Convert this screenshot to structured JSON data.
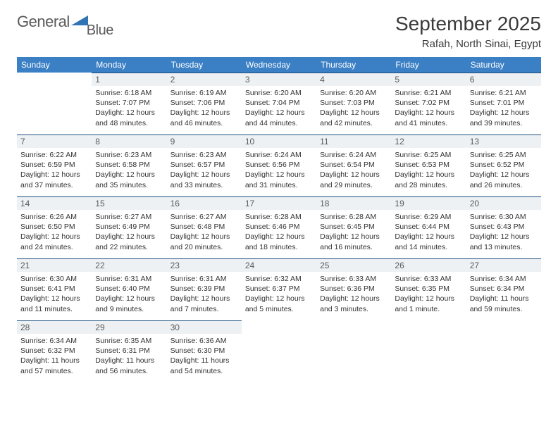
{
  "logo": {
    "text1": "General",
    "text2": "Blue"
  },
  "title": "September 2025",
  "location": "Rafah, North Sinai, Egypt",
  "colors": {
    "header_bg": "#3b7fc4",
    "header_text": "#ffffff",
    "daynum_bg": "#eef1f4",
    "daynum_border": "#1b4e7e",
    "text": "#333333",
    "title_text": "#3a3a3a",
    "logo_text": "#5a5a5a",
    "logo_accent": "#2f74b5"
  },
  "fonts": {
    "title_size": 28,
    "location_size": 15,
    "header_size": 12,
    "daynum_size": 12,
    "body_size": 10.5
  },
  "weekdays": [
    "Sunday",
    "Monday",
    "Tuesday",
    "Wednesday",
    "Thursday",
    "Friday",
    "Saturday"
  ],
  "weeks": [
    [
      null,
      {
        "n": "1",
        "sr": "6:18 AM",
        "ss": "7:07 PM",
        "dl": "12 hours and 48 minutes."
      },
      {
        "n": "2",
        "sr": "6:19 AM",
        "ss": "7:06 PM",
        "dl": "12 hours and 46 minutes."
      },
      {
        "n": "3",
        "sr": "6:20 AM",
        "ss": "7:04 PM",
        "dl": "12 hours and 44 minutes."
      },
      {
        "n": "4",
        "sr": "6:20 AM",
        "ss": "7:03 PM",
        "dl": "12 hours and 42 minutes."
      },
      {
        "n": "5",
        "sr": "6:21 AM",
        "ss": "7:02 PM",
        "dl": "12 hours and 41 minutes."
      },
      {
        "n": "6",
        "sr": "6:21 AM",
        "ss": "7:01 PM",
        "dl": "12 hours and 39 minutes."
      }
    ],
    [
      {
        "n": "7",
        "sr": "6:22 AM",
        "ss": "6:59 PM",
        "dl": "12 hours and 37 minutes."
      },
      {
        "n": "8",
        "sr": "6:23 AM",
        "ss": "6:58 PM",
        "dl": "12 hours and 35 minutes."
      },
      {
        "n": "9",
        "sr": "6:23 AM",
        "ss": "6:57 PM",
        "dl": "12 hours and 33 minutes."
      },
      {
        "n": "10",
        "sr": "6:24 AM",
        "ss": "6:56 PM",
        "dl": "12 hours and 31 minutes."
      },
      {
        "n": "11",
        "sr": "6:24 AM",
        "ss": "6:54 PM",
        "dl": "12 hours and 29 minutes."
      },
      {
        "n": "12",
        "sr": "6:25 AM",
        "ss": "6:53 PM",
        "dl": "12 hours and 28 minutes."
      },
      {
        "n": "13",
        "sr": "6:25 AM",
        "ss": "6:52 PM",
        "dl": "12 hours and 26 minutes."
      }
    ],
    [
      {
        "n": "14",
        "sr": "6:26 AM",
        "ss": "6:50 PM",
        "dl": "12 hours and 24 minutes."
      },
      {
        "n": "15",
        "sr": "6:27 AM",
        "ss": "6:49 PM",
        "dl": "12 hours and 22 minutes."
      },
      {
        "n": "16",
        "sr": "6:27 AM",
        "ss": "6:48 PM",
        "dl": "12 hours and 20 minutes."
      },
      {
        "n": "17",
        "sr": "6:28 AM",
        "ss": "6:46 PM",
        "dl": "12 hours and 18 minutes."
      },
      {
        "n": "18",
        "sr": "6:28 AM",
        "ss": "6:45 PM",
        "dl": "12 hours and 16 minutes."
      },
      {
        "n": "19",
        "sr": "6:29 AM",
        "ss": "6:44 PM",
        "dl": "12 hours and 14 minutes."
      },
      {
        "n": "20",
        "sr": "6:30 AM",
        "ss": "6:43 PM",
        "dl": "12 hours and 13 minutes."
      }
    ],
    [
      {
        "n": "21",
        "sr": "6:30 AM",
        "ss": "6:41 PM",
        "dl": "12 hours and 11 minutes."
      },
      {
        "n": "22",
        "sr": "6:31 AM",
        "ss": "6:40 PM",
        "dl": "12 hours and 9 minutes."
      },
      {
        "n": "23",
        "sr": "6:31 AM",
        "ss": "6:39 PM",
        "dl": "12 hours and 7 minutes."
      },
      {
        "n": "24",
        "sr": "6:32 AM",
        "ss": "6:37 PM",
        "dl": "12 hours and 5 minutes."
      },
      {
        "n": "25",
        "sr": "6:33 AM",
        "ss": "6:36 PM",
        "dl": "12 hours and 3 minutes."
      },
      {
        "n": "26",
        "sr": "6:33 AM",
        "ss": "6:35 PM",
        "dl": "12 hours and 1 minute."
      },
      {
        "n": "27",
        "sr": "6:34 AM",
        "ss": "6:34 PM",
        "dl": "11 hours and 59 minutes."
      }
    ],
    [
      {
        "n": "28",
        "sr": "6:34 AM",
        "ss": "6:32 PM",
        "dl": "11 hours and 57 minutes."
      },
      {
        "n": "29",
        "sr": "6:35 AM",
        "ss": "6:31 PM",
        "dl": "11 hours and 56 minutes."
      },
      {
        "n": "30",
        "sr": "6:36 AM",
        "ss": "6:30 PM",
        "dl": "11 hours and 54 minutes."
      },
      null,
      null,
      null,
      null
    ]
  ],
  "labels": {
    "sunrise": "Sunrise:",
    "sunset": "Sunset:",
    "daylight": "Daylight:"
  }
}
